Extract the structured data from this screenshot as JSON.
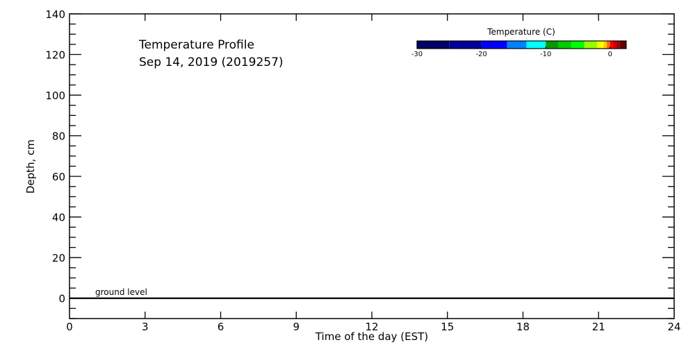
{
  "chart_data": {
    "type": "heatmap",
    "title": "Temperature Profile",
    "subtitle": "Sep 14, 2019 (2019257)",
    "xlabel": "Time of the day (EST)",
    "ylabel": "Depth, cm",
    "xlim": [
      0,
      24
    ],
    "ylim": [
      -10,
      140
    ],
    "xticks": [
      0,
      3,
      6,
      9,
      12,
      15,
      18,
      21,
      24
    ],
    "yticks": [
      0,
      20,
      40,
      60,
      80,
      100,
      120,
      140
    ],
    "grid": false,
    "data": [],
    "annotations": [
      {
        "text": "ground level",
        "x": 1,
        "y": 0
      }
    ],
    "reference_line": {
      "y": 0,
      "color": "#000000"
    },
    "colorbar": {
      "title": "Temperature (C)",
      "ticks": [
        -30,
        -20,
        -10,
        0
      ],
      "range": [
        -30,
        2.5
      ],
      "placement": "top-right",
      "bins": [
        {
          "from": -30,
          "to": -25,
          "color": "#000066"
        },
        {
          "from": -25,
          "to": -20,
          "color": "#000099"
        },
        {
          "from": -20,
          "to": -16,
          "color": "#0000ff"
        },
        {
          "from": -16,
          "to": -13,
          "color": "#0080ff"
        },
        {
          "from": -13,
          "to": -10,
          "color": "#00ffff"
        },
        {
          "from": -10,
          "to": -8,
          "color": "#009900"
        },
        {
          "from": -8,
          "to": -6,
          "color": "#00cc00"
        },
        {
          "from": -6,
          "to": -4,
          "color": "#00ff00"
        },
        {
          "from": -4,
          "to": -2,
          "color": "#99ff00"
        },
        {
          "from": -2,
          "to": -1,
          "color": "#ffff00"
        },
        {
          "from": -1,
          "to": -0.5,
          "color": "#ffcc00"
        },
        {
          "from": -0.5,
          "to": 0,
          "color": "#ff6600"
        },
        {
          "from": 0,
          "to": 0.5,
          "color": "#ff0000"
        },
        {
          "from": 0.5,
          "to": 1,
          "color": "#cc0000"
        },
        {
          "from": 1,
          "to": 1.5,
          "color": "#990000"
        },
        {
          "from": 1.5,
          "to": 2.5,
          "color": "#660000"
        }
      ]
    }
  }
}
